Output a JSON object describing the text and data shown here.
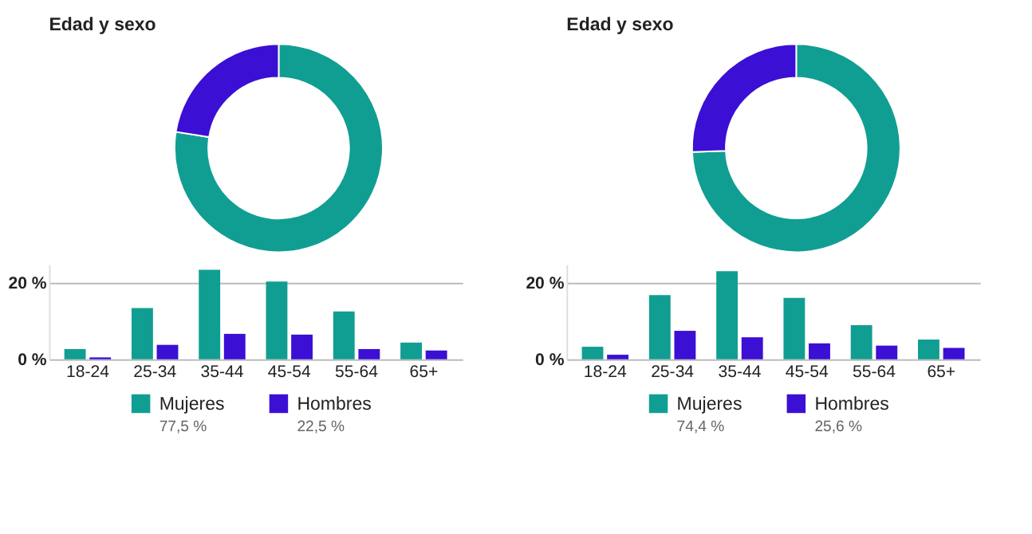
{
  "chart_data": [
    {
      "type": "donut",
      "title": "Edad y sexo",
      "categories": [
        "Mujeres",
        "Hombres"
      ],
      "values": [
        77.5,
        22.5
      ],
      "colors": [
        "#119e92",
        "#3b0fd4"
      ],
      "value_labels": [
        "77,5 %",
        "22,5 %"
      ],
      "legend": "bottom"
    },
    {
      "type": "bar",
      "categories": [
        "18-24",
        "25-34",
        "35-44",
        "45-54",
        "55-64",
        "65+"
      ],
      "ylim": [
        0,
        25
      ],
      "yticks": [
        {
          "value": 0,
          "label": "0 %"
        },
        {
          "value": 20,
          "label": "20 %"
        }
      ],
      "grid": "y",
      "series": [
        {
          "color": "#119e92",
          "values": [
            2.7,
            13.5,
            23.6,
            20.5,
            12.6,
            4.4
          ]
        },
        {
          "color": "#3b0fd4",
          "values": [
            0.5,
            3.8,
            6.7,
            6.5,
            2.7,
            2.3
          ]
        }
      ]
    },
    {
      "type": "donut",
      "title": "Edad y sexo",
      "categories": [
        "Mujeres",
        "Hombres"
      ],
      "values": [
        74.4,
        25.6
      ],
      "colors": [
        "#119e92",
        "#3b0fd4"
      ],
      "value_labels": [
        "74,4 %",
        "25,6 %"
      ],
      "legend": "bottom"
    },
    {
      "type": "bar",
      "categories": [
        "18-24",
        "25-34",
        "35-44",
        "45-54",
        "55-64",
        "65+"
      ],
      "ylim": [
        0,
        25
      ],
      "yticks": [
        {
          "value": 0,
          "label": "0 %"
        },
        {
          "value": 20,
          "label": "20 %"
        }
      ],
      "grid": "y",
      "series": [
        {
          "color": "#119e92",
          "values": [
            3.3,
            16.9,
            23.2,
            16.2,
            9.0,
            5.2
          ]
        },
        {
          "color": "#3b0fd4",
          "values": [
            1.2,
            7.5,
            5.8,
            4.2,
            3.6,
            3.0
          ]
        }
      ]
    }
  ]
}
